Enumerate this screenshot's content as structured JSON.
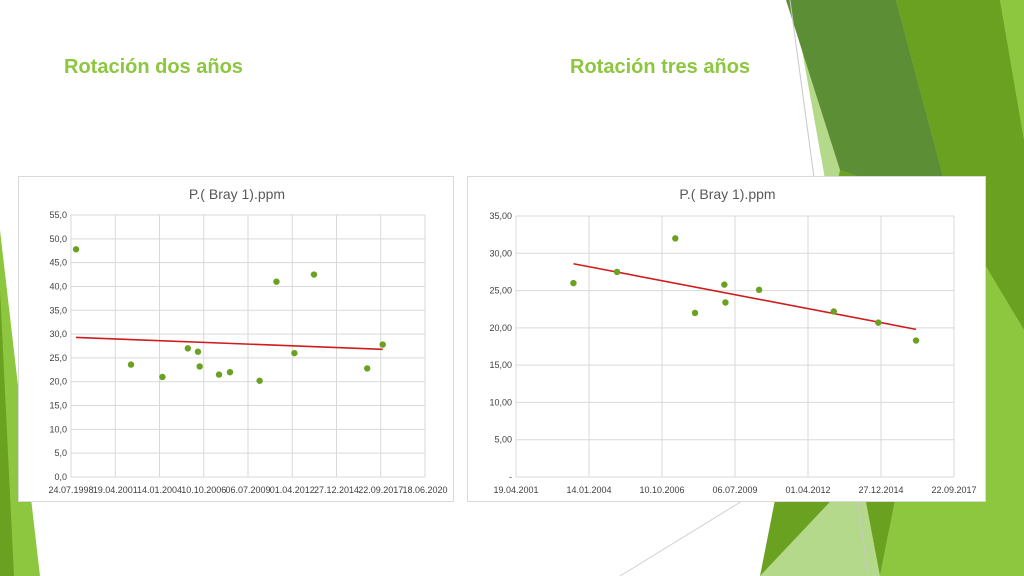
{
  "slide": {
    "title_left": "Rotación dos años",
    "title_right": "Rotación tres años"
  },
  "colors": {
    "title": "#8dc63f",
    "points": "#6aa121",
    "trendline": "#d01c1c",
    "gridlines": "#d9d9d9",
    "axis_text": "#404040",
    "decor_greens": [
      "#8dc63f",
      "#6aa121",
      "#5c8f35",
      "#b5d98a"
    ]
  },
  "chart_data": [
    {
      "type": "scatter",
      "title": "P.( Bray 1).ppm",
      "x_tick_labels": [
        "24.07.1998",
        "19.04.2001",
        "14.01.2004",
        "10.10.2006",
        "06.07.2009",
        "01.04.2012",
        "27.12.2014",
        "22.09.2017",
        "18.06.2020"
      ],
      "y_tick_labels": [
        "0,0",
        "5,0",
        "10,0",
        "15,0",
        "20,0",
        "25,0",
        "30,0",
        "35,0",
        "40,0",
        "45,0",
        "50,0",
        "55,0"
      ],
      "xlim": [
        "1998-07-24",
        "2020-06-18"
      ],
      "ylim": [
        0,
        55
      ],
      "grid": true,
      "legend": false,
      "points": [
        {
          "x": "1998-11-15",
          "y": 47.8
        },
        {
          "x": "2002-04-10",
          "y": 23.6
        },
        {
          "x": "2004-03-20",
          "y": 21.0
        },
        {
          "x": "2005-10-15",
          "y": 27.0
        },
        {
          "x": "2006-06-01",
          "y": 26.3
        },
        {
          "x": "2006-07-10",
          "y": 23.2
        },
        {
          "x": "2007-09-20",
          "y": 21.5
        },
        {
          "x": "2008-05-25",
          "y": 22.0
        },
        {
          "x": "2010-03-25",
          "y": 20.2
        },
        {
          "x": "2011-04-10",
          "y": 41.0
        },
        {
          "x": "2012-05-20",
          "y": 26.0
        },
        {
          "x": "2013-08-05",
          "y": 42.5
        },
        {
          "x": "2016-11-20",
          "y": 22.8
        },
        {
          "x": "2017-11-05",
          "y": 27.8
        }
      ],
      "trendline": {
        "x": [
          "1998-11-15",
          "2017-11-05"
        ],
        "y": [
          29.3,
          26.8
        ]
      }
    },
    {
      "type": "scatter",
      "title": "P.( Bray 1).ppm",
      "x_tick_labels": [
        "19.04.2001",
        "14.01.2004",
        "10.10.2006",
        "06.07.2009",
        "01.04.2012",
        "27.12.2014",
        "22.09.2017"
      ],
      "y_tick_labels": [
        "-",
        "5,00",
        "10,00",
        "15,00",
        "20,00",
        "25,00",
        "30,00",
        "35,00"
      ],
      "xlim": [
        "2001-04-19",
        "2017-09-22"
      ],
      "ylim": [
        0,
        35
      ],
      "grid": true,
      "legend": false,
      "points": [
        {
          "x": "2003-06-15",
          "y": 26.0
        },
        {
          "x": "2005-02-01",
          "y": 27.5
        },
        {
          "x": "2007-04-10",
          "y": 32.0
        },
        {
          "x": "2008-01-05",
          "y": 22.0
        },
        {
          "x": "2009-02-10",
          "y": 25.8
        },
        {
          "x": "2009-02-25",
          "y": 23.4
        },
        {
          "x": "2010-06-01",
          "y": 25.1
        },
        {
          "x": "2013-03-20",
          "y": 22.2
        },
        {
          "x": "2014-11-20",
          "y": 20.7
        },
        {
          "x": "2016-04-20",
          "y": 18.3
        }
      ],
      "trendline": {
        "x": [
          "2003-06-15",
          "2016-04-20"
        ],
        "y": [
          28.6,
          19.8
        ]
      }
    }
  ]
}
